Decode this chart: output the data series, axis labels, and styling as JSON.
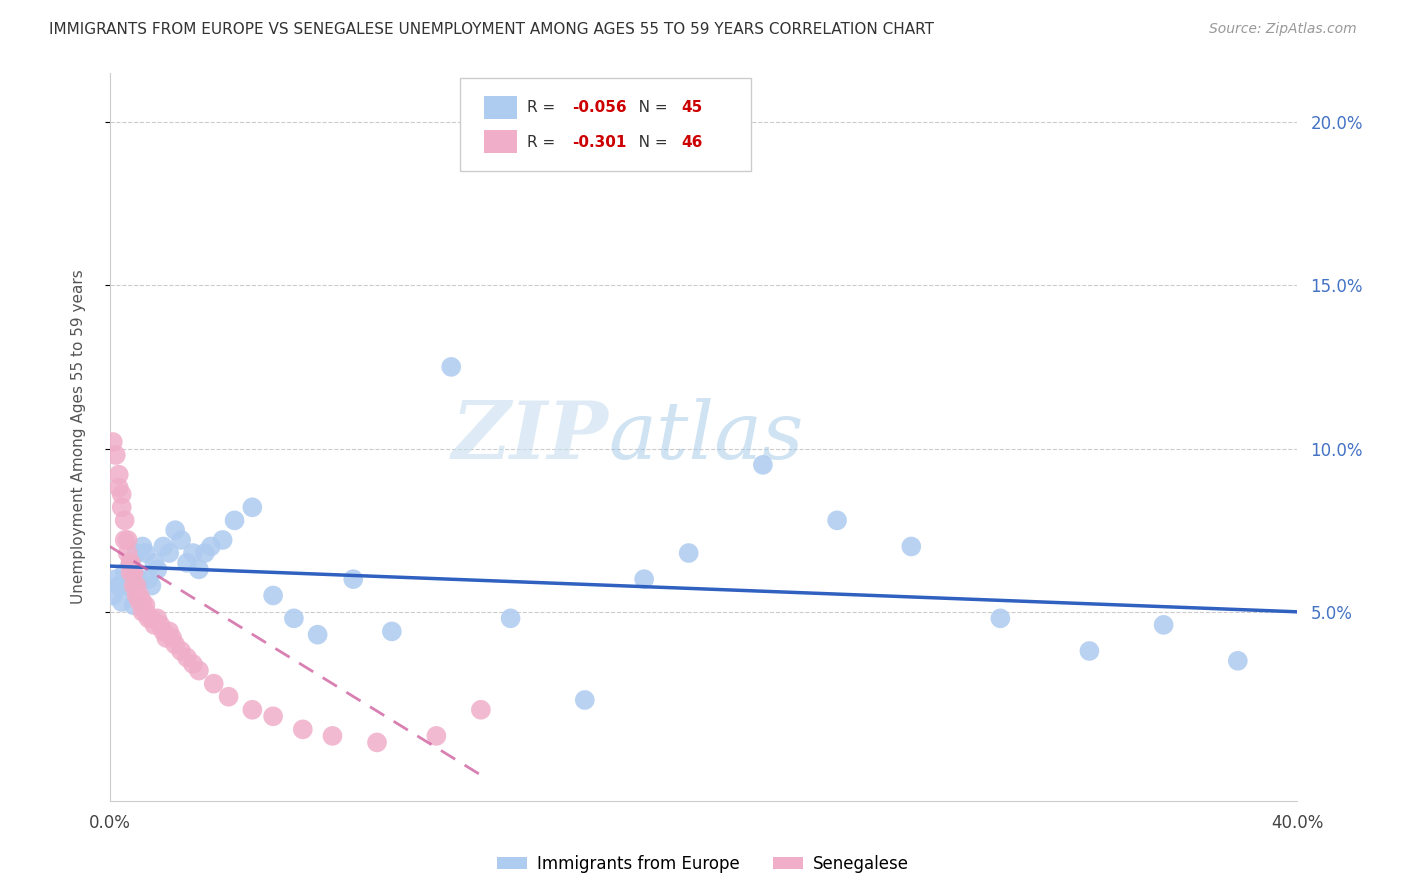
{
  "title": "IMMIGRANTS FROM EUROPE VS SENEGALESE UNEMPLOYMENT AMONG AGES 55 TO 59 YEARS CORRELATION CHART",
  "source": "Source: ZipAtlas.com",
  "ylabel": "Unemployment Among Ages 55 to 59 years",
  "xlim": [
    0,
    0.4
  ],
  "ylim": [
    -0.008,
    0.215
  ],
  "xtick_positions": [
    0.0,
    0.05,
    0.1,
    0.15,
    0.2,
    0.25,
    0.3,
    0.35,
    0.4
  ],
  "xtick_labels_show": {
    "0.0": "0.0%",
    "0.40": "40.0%"
  },
  "ytick_vals": [
    0.05,
    0.1,
    0.15,
    0.2
  ],
  "r_europe": -0.056,
  "n_europe": 45,
  "r_senegalese": -0.301,
  "n_senegalese": 46,
  "color_europe": "#aecbf0",
  "color_senegalese": "#f0aec8",
  "color_line_europe": "#3060c0",
  "color_line_senegalese": "#d060a0",
  "watermark_zip": "ZIP",
  "watermark_atlas": "atlas",
  "europe_x": [
    0.001,
    0.002,
    0.003,
    0.004,
    0.005,
    0.006,
    0.007,
    0.008,
    0.009,
    0.01,
    0.011,
    0.012,
    0.013,
    0.014,
    0.015,
    0.016,
    0.018,
    0.02,
    0.022,
    0.024,
    0.026,
    0.028,
    0.03,
    0.032,
    0.034,
    0.038,
    0.042,
    0.048,
    0.055,
    0.062,
    0.07,
    0.082,
    0.095,
    0.115,
    0.135,
    0.16,
    0.18,
    0.195,
    0.22,
    0.245,
    0.27,
    0.3,
    0.33,
    0.355,
    0.38
  ],
  "europe_y": [
    0.055,
    0.06,
    0.058,
    0.053,
    0.062,
    0.058,
    0.065,
    0.052,
    0.068,
    0.06,
    0.07,
    0.068,
    0.06,
    0.058,
    0.065,
    0.063,
    0.07,
    0.068,
    0.075,
    0.072,
    0.065,
    0.068,
    0.063,
    0.068,
    0.07,
    0.072,
    0.078,
    0.082,
    0.055,
    0.048,
    0.043,
    0.06,
    0.044,
    0.125,
    0.048,
    0.023,
    0.06,
    0.068,
    0.095,
    0.078,
    0.07,
    0.048,
    0.038,
    0.046,
    0.035
  ],
  "senegalese_x": [
    0.001,
    0.002,
    0.003,
    0.003,
    0.004,
    0.004,
    0.005,
    0.005,
    0.006,
    0.006,
    0.007,
    0.007,
    0.007,
    0.008,
    0.008,
    0.009,
    0.009,
    0.01,
    0.01,
    0.011,
    0.011,
    0.012,
    0.012,
    0.013,
    0.014,
    0.015,
    0.016,
    0.017,
    0.018,
    0.019,
    0.02,
    0.021,
    0.022,
    0.024,
    0.026,
    0.028,
    0.03,
    0.035,
    0.04,
    0.048,
    0.055,
    0.065,
    0.075,
    0.09,
    0.11,
    0.125
  ],
  "senegalese_y": [
    0.102,
    0.098,
    0.092,
    0.088,
    0.082,
    0.086,
    0.078,
    0.072,
    0.068,
    0.072,
    0.065,
    0.062,
    0.065,
    0.058,
    0.062,
    0.055,
    0.058,
    0.053,
    0.055,
    0.05,
    0.053,
    0.05,
    0.052,
    0.048,
    0.048,
    0.046,
    0.048,
    0.046,
    0.044,
    0.042,
    0.044,
    0.042,
    0.04,
    0.038,
    0.036,
    0.034,
    0.032,
    0.028,
    0.024,
    0.02,
    0.018,
    0.014,
    0.012,
    0.01,
    0.012,
    0.02
  ],
  "europe_line_x": [
    0.0,
    0.4
  ],
  "europe_line_y": [
    0.064,
    0.05
  ],
  "seng_line_x": [
    0.0,
    0.125
  ],
  "seng_line_y": [
    0.07,
    0.0
  ]
}
